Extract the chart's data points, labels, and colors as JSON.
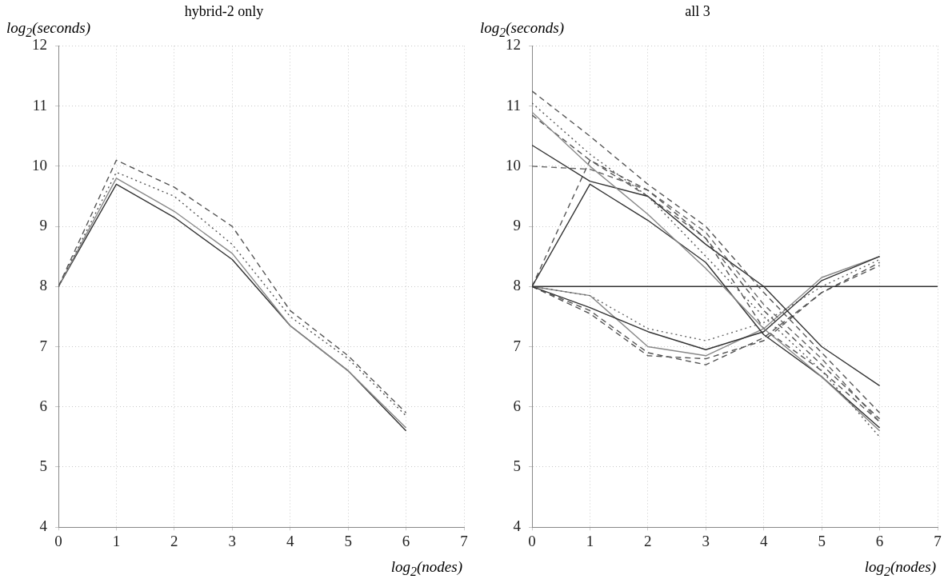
{
  "chart_data": [
    {
      "type": "line",
      "title": "hybrid-2 only",
      "xlabel": "log$_{2}$(nodes)",
      "ylabel": "log$_{2}$(seconds)",
      "x": [
        0,
        1,
        2,
        3,
        4,
        5,
        6
      ],
      "xlim": [
        0,
        7
      ],
      "xticks": [
        0,
        1,
        2,
        3,
        4,
        5,
        6,
        7
      ],
      "ylim": [
        4,
        12
      ],
      "yticks": [
        4,
        5,
        6,
        7,
        8,
        9,
        10,
        11,
        12
      ],
      "grid": true,
      "legend": false,
      "marker": "none",
      "series": [
        {
          "color": "#555555",
          "line_style": "dashed",
          "values": [
            8,
            10.1,
            9.65,
            9.0,
            7.6,
            6.85,
            5.9
          ]
        },
        {
          "color": "#555555",
          "line_style": "dotted",
          "values": [
            8,
            9.9,
            9.5,
            8.7,
            7.5,
            6.8,
            5.85
          ]
        },
        {
          "color": "#888888",
          "line_style": "solid",
          "values": [
            8,
            9.8,
            9.25,
            8.55,
            7.35,
            6.6,
            5.65
          ]
        },
        {
          "color": "#333333",
          "line_style": "solid",
          "values": [
            8,
            9.7,
            9.15,
            8.45,
            7.35,
            6.6,
            5.6
          ]
        }
      ]
    },
    {
      "type": "line",
      "title": "all 3",
      "xlabel": "log$_{2}$(nodes)",
      "ylabel": "log$_{2}$(seconds)",
      "x": [
        0,
        1,
        2,
        3,
        4,
        5,
        6
      ],
      "xlim": [
        0,
        7
      ],
      "xticks": [
        0,
        1,
        2,
        3,
        4,
        5,
        6,
        7
      ],
      "ylim": [
        4,
        12
      ],
      "yticks": [
        4,
        5,
        6,
        7,
        8,
        9,
        10,
        11,
        12
      ],
      "grid": true,
      "legend": false,
      "marker": "none",
      "series": [
        {
          "color": "#555555",
          "line_style": "dashed",
          "values": [
            11.25,
            10.5,
            9.7,
            9.0,
            7.9,
            6.9,
            5.9
          ]
        },
        {
          "color": "#555555",
          "line_style": "dotted",
          "values": [
            11.05,
            10.2,
            9.5,
            8.5,
            7.5,
            6.6,
            5.5
          ]
        },
        {
          "color": "#888888",
          "line_style": "solid",
          "values": [
            10.9,
            10.0,
            9.2,
            8.3,
            7.3,
            6.5,
            5.6
          ]
        },
        {
          "color": "#555555",
          "line_style": "dashed",
          "values": [
            10.85,
            10.1,
            9.6,
            8.8,
            7.6,
            6.7,
            5.8
          ]
        },
        {
          "color": "#333333",
          "line_style": "solid",
          "values": [
            10.35,
            9.75,
            9.5,
            8.7,
            8.0,
            7.0,
            6.35
          ]
        },
        {
          "color": "#666666",
          "line_style": "dashed",
          "values": [
            10.0,
            9.95,
            9.6,
            8.9,
            7.7,
            6.8,
            5.75
          ]
        },
        {
          "color": "#333333",
          "line_style": "solid",
          "values": [
            8,
            9.7,
            9.1,
            8.4,
            7.2,
            6.5,
            5.65
          ]
        },
        {
          "color": "#555555",
          "line_style": "dashed",
          "values": [
            8,
            10.1,
            9.5,
            8.8,
            7.3,
            6.6,
            5.75
          ]
        },
        {
          "color": "#333333",
          "line_style": "solid",
          "x": [
            0,
            7
          ],
          "values": [
            8,
            8
          ]
        },
        {
          "color": "#333333",
          "line_style": "solid",
          "values": [
            8,
            7.65,
            7.25,
            6.95,
            7.25,
            8.1,
            8.5
          ]
        },
        {
          "color": "#666666",
          "line_style": "dotted",
          "values": [
            8,
            7.85,
            7.3,
            7.1,
            7.4,
            8.0,
            8.45
          ]
        },
        {
          "color": "#555555",
          "line_style": "dashed",
          "values": [
            8,
            7.6,
            6.9,
            6.7,
            7.15,
            7.9,
            8.35
          ]
        },
        {
          "color": "#888888",
          "line_style": "solid",
          "values": [
            8,
            7.85,
            7.0,
            6.85,
            7.3,
            8.15,
            8.5
          ]
        },
        {
          "color": "#555555",
          "line_style": "dashed",
          "values": [
            8,
            7.55,
            6.85,
            6.8,
            7.1,
            7.9,
            8.4
          ]
        }
      ]
    }
  ]
}
